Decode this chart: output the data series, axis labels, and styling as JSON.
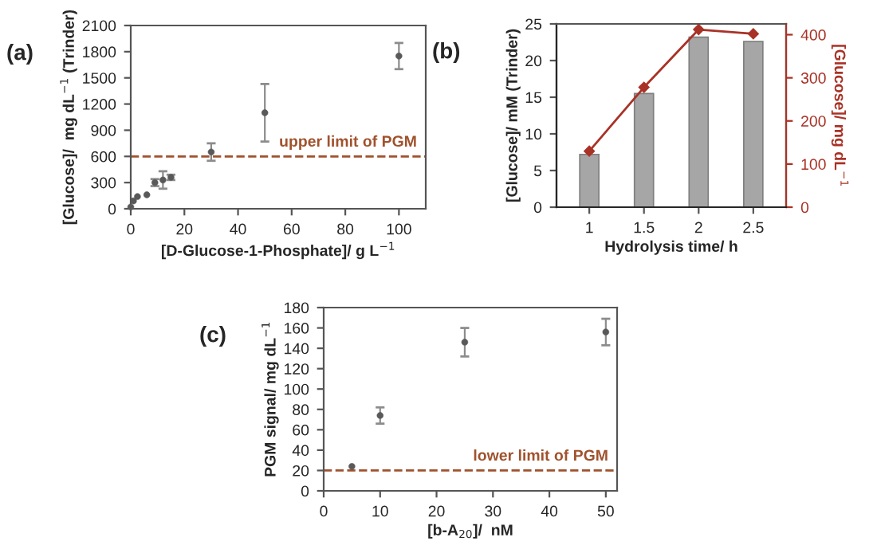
{
  "chart_data": [
    {
      "type": "scatter",
      "annotations": [
        "(a)"
      ],
      "xlabel": "[D-Glucose-1-Phosphate]/ g L$^{−1}$",
      "ylabel": "[Glucose]/  mg dL$^{−1}$ (Trinder)",
      "x": [
        0,
        1,
        2.5,
        6,
        9,
        12,
        15,
        30,
        50,
        100
      ],
      "series": [
        {
          "color": "#595959",
          "values": [
            20,
            90,
            140,
            160,
            300,
            330,
            360,
            650,
            1100,
            1750
          ],
          "errors": [
            null,
            null,
            null,
            null,
            40,
            100,
            30,
            100,
            330,
            150
          ]
        }
      ],
      "marker": "circle",
      "xlim": [
        0,
        110
      ],
      "xticks": [
        0,
        20,
        40,
        60,
        80,
        100
      ],
      "ylim": [
        0,
        2100
      ],
      "yticks": [
        0,
        300,
        600,
        900,
        1200,
        1500,
        1800,
        2100
      ],
      "ref_lines": [
        {
          "axis": "y",
          "value": 600,
          "label": "upper limit of PGM",
          "color": "#a0522d",
          "line_style": "dashed"
        }
      ]
    },
    {
      "type": "bar",
      "annotations": [
        "(b)"
      ],
      "xlabel": "Hydrolysis time/ h",
      "ylabel": "[Glucose]/ mM (Trinder)",
      "y2label": "[Glucose]/ mg dL$^{−1}$",
      "categories": [
        "1",
        "1.5",
        "2",
        "2.5"
      ],
      "series": [
        {
          "color": "#a6a6a6",
          "values": [
            7.2,
            15.5,
            23.2,
            22.6
          ]
        },
        {
          "type": "line",
          "axis": "y2",
          "color": "#a93226",
          "marker": "diamond",
          "values": [
            130,
            278,
            412,
            402
          ]
        }
      ],
      "ylim": [
        0,
        25
      ],
      "yticks": [
        0,
        5,
        10,
        15,
        20,
        25
      ],
      "y2lim": [
        0,
        425
      ],
      "y2ticks": [
        0,
        100,
        200,
        300,
        400
      ]
    },
    {
      "type": "scatter",
      "annotations": [
        "(c)"
      ],
      "xlabel": "[b-A$_{20}$]/  nM",
      "ylabel": "PGM signal/ mg dL$^{−1}$",
      "x": [
        5,
        10,
        25,
        50
      ],
      "series": [
        {
          "color": "#595959",
          "values": [
            24,
            74,
            146,
            156
          ],
          "errors": [
            null,
            8,
            14,
            13
          ]
        }
      ],
      "marker": "circle",
      "xlim": [
        0,
        52
      ],
      "xticks": [
        0,
        10,
        20,
        30,
        40,
        50
      ],
      "ylim": [
        0,
        180
      ],
      "yticks": [
        0,
        20,
        40,
        60,
        80,
        100,
        120,
        140,
        160,
        180
      ],
      "ref_lines": [
        {
          "axis": "y",
          "value": 20,
          "label": "lower limit of PGM",
          "color": "#a0522d",
          "line_style": "dashed"
        }
      ]
    }
  ]
}
